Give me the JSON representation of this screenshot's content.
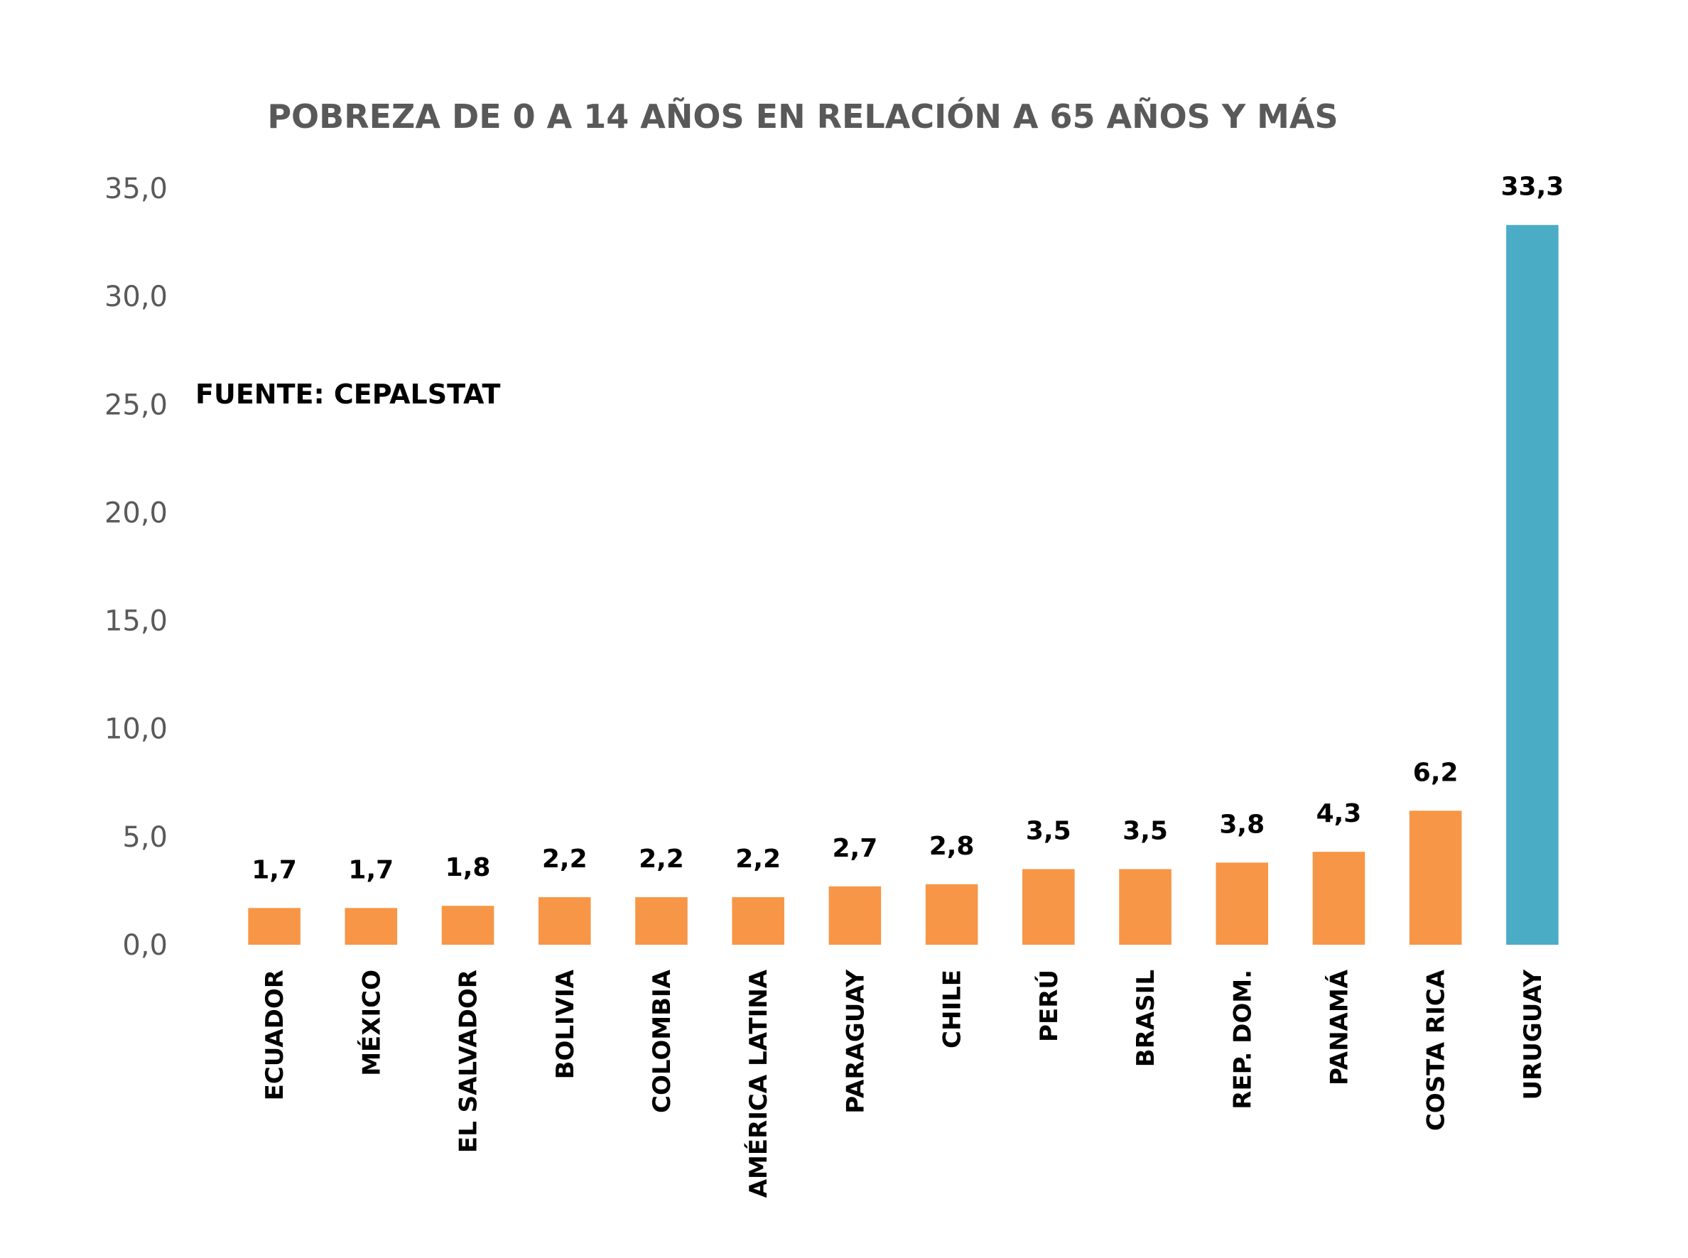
{
  "chart_data": {
    "type": "bar",
    "title": "POBREZA DE 0 A 14 AÑOS EN RELACIÓN A 65 AÑOS Y MÁS",
    "annotation": "FUENTE: CEPALSTAT",
    "categories": [
      "ECUADOR",
      "MÉXICO",
      "EL SALVADOR",
      "BOLIVIA",
      "COLOMBIA",
      "AMÉRICA LATINA",
      "PARAGUAY",
      "CHILE",
      "PERÚ",
      "BRASIL",
      "REP. DOM.",
      "PANAMÁ",
      "COSTA RICA",
      "URUGUAY"
    ],
    "values": [
      1.7,
      1.7,
      1.8,
      2.2,
      2.2,
      2.2,
      2.7,
      2.8,
      3.5,
      3.5,
      3.8,
      4.3,
      6.2,
      33.3
    ],
    "value_labels": [
      "1,7",
      "1,7",
      "1,8",
      "2,2",
      "2,2",
      "2,2",
      "2,7",
      "2,8",
      "3,5",
      "3,5",
      "3,8",
      "4,3",
      "6,2",
      "33,3"
    ],
    "y_ticks": [
      0,
      5,
      10,
      15,
      20,
      25,
      30,
      35
    ],
    "y_tick_labels": [
      "0,0",
      "5,0",
      "10,0",
      "15,0",
      "20,0",
      "25,0",
      "30,0",
      "35,0"
    ],
    "ylim": [
      0,
      35
    ],
    "grid": false,
    "legend": "none",
    "colors": {
      "bar": "#F79646",
      "highlight_bar": "#4BACC6",
      "highlight_category": "URUGUAY",
      "axis_text": "#595959"
    }
  }
}
